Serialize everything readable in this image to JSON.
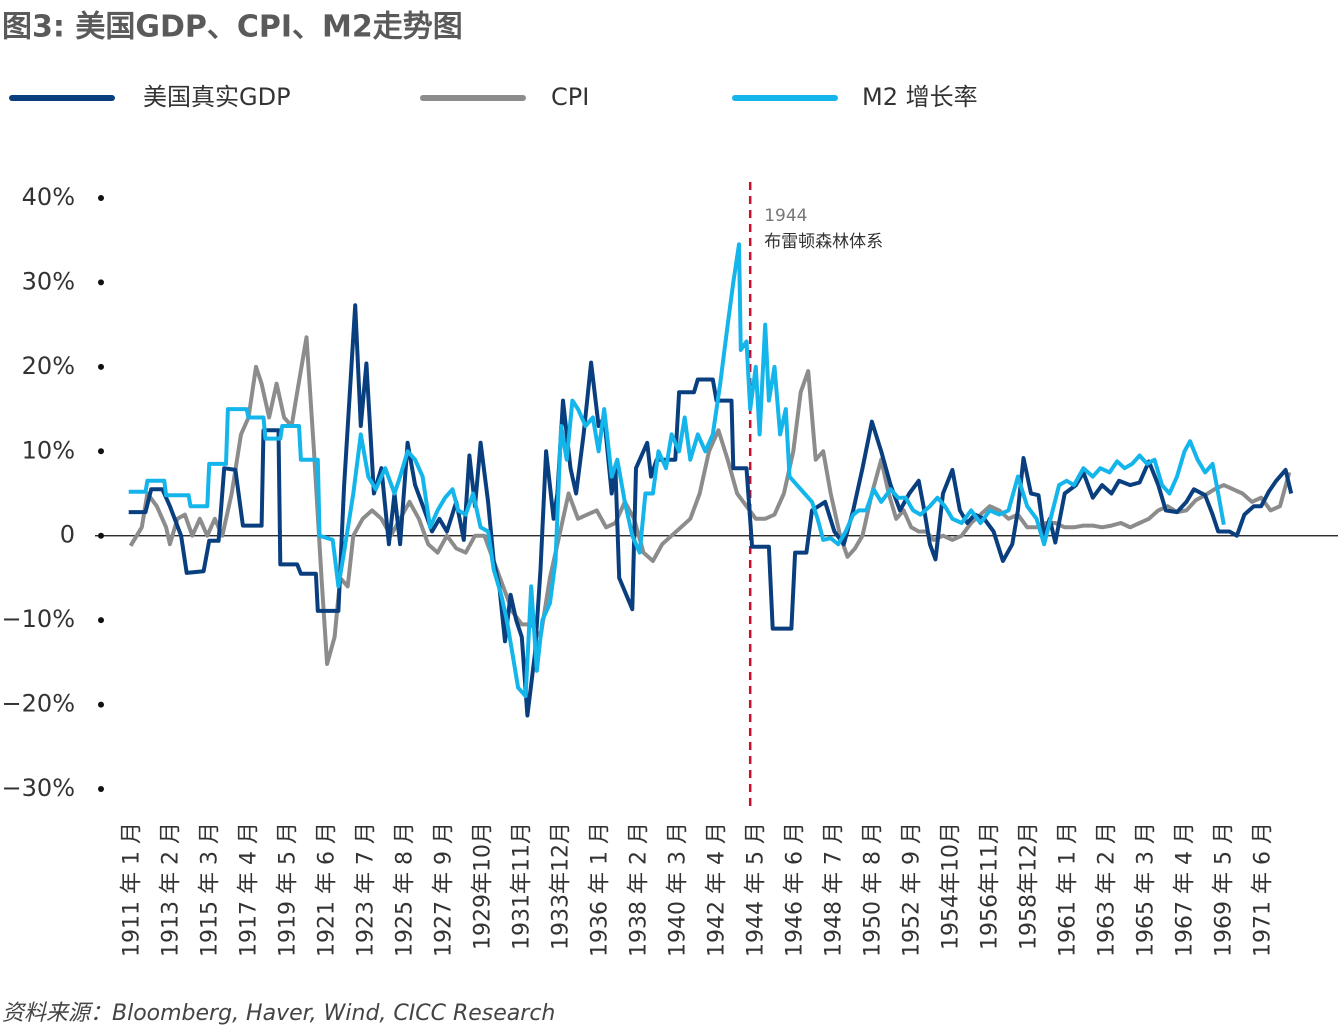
{
  "chart_data": {
    "type": "line",
    "title": "图3: 美国GDP、CPI、M2走势图",
    "source": "资料来源：Bloomberg, Haver, Wind, CICC Research",
    "xlim": [
      1909,
      1975.4
    ],
    "ylim": [
      -30,
      40
    ],
    "yticks": [
      {
        "value": 40,
        "label": "40%"
      },
      {
        "value": 30,
        "label": "30%"
      },
      {
        "value": 20,
        "label": "20%"
      },
      {
        "value": 10,
        "label": "10%"
      },
      0,
      {
        "value": -10,
        "label": "−10%"
      },
      {
        "value": -20,
        "label": "−20%"
      },
      {
        "value": -30,
        "label": "−30%"
      }
    ],
    "xticks": [
      {
        "value": 1911,
        "label": "1911 年 1 月"
      },
      {
        "value": 1913.083,
        "label": "1913 年 2 月"
      },
      {
        "value": 1915.167,
        "label": "1915 年 3 月"
      },
      {
        "value": 1917.25,
        "label": "1917 年 4 月"
      },
      {
        "value": 1919.333,
        "label": "1919 年 5 月"
      },
      {
        "value": 1921.417,
        "label": "1921 年 6 月"
      },
      {
        "value": 1923.5,
        "label": "1923 年 7 月"
      },
      {
        "value": 1925.583,
        "label": "1925 年 8 月"
      },
      {
        "value": 1927.667,
        "label": "1927 年 9 月"
      },
      {
        "value": 1929.75,
        "label": "1929年10月"
      },
      {
        "value": 1931.833,
        "label": "1931年11月"
      },
      {
        "value": 1933.917,
        "label": "1933年12月"
      },
      {
        "value": 1936,
        "label": "1936 年 1 月"
      },
      {
        "value": 1938.083,
        "label": "1938 年 2 月"
      },
      {
        "value": 1940.167,
        "label": "1940 年 3 月"
      },
      {
        "value": 1942.25,
        "label": "1942 年 4 月"
      },
      {
        "value": 1944.333,
        "label": "1944 年 5 月"
      },
      {
        "value": 1946.417,
        "label": "1946 年 6 月"
      },
      {
        "value": 1948.5,
        "label": "1948 年 7 月"
      },
      {
        "value": 1950.583,
        "label": "1950 年 8 月"
      },
      {
        "value": 1952.667,
        "label": "1952 年 9 月"
      },
      {
        "value": 1954.75,
        "label": "1954年10月"
      },
      {
        "value": 1956.833,
        "label": "1956年11月"
      },
      {
        "value": 1958.917,
        "label": "1958年12月"
      },
      {
        "value": 1961,
        "label": "1961 年 1 月"
      },
      {
        "value": 1963.083,
        "label": "1963 年 2 月"
      },
      {
        "value": 1965.167,
        "label": "1965 年 3 月"
      },
      {
        "value": 1967.25,
        "label": "1967 年 4 月"
      },
      {
        "value": 1969.333,
        "label": "1969 年 5 月"
      },
      {
        "value": 1971.417,
        "label": "1971 年 6 月"
      }
    ],
    "annotation": {
      "x": 1944,
      "year": "1944",
      "text": "布雷顿森林体系",
      "color": "#c8102e"
    },
    "series": [
      {
        "name": "美国真实GDP",
        "color": "#0a3f7f",
        "x": [
          1910.8,
          1911.7,
          1912.0,
          1912.6,
          1913.0,
          1913.6,
          1913.9,
          1914.8,
          1915.1,
          1915.6,
          1915.9,
          1916.5,
          1916.9,
          1917.9,
          1918.0,
          1918.8,
          1918.9,
          1919.8,
          1920.0,
          1920.8,
          1920.9,
          1922.0,
          1922.3,
          1922.9,
          1923.2,
          1923.5,
          1923.9,
          1924.3,
          1924.7,
          1925.0,
          1925.3,
          1925.7,
          1926.1,
          1926.6,
          1927.0,
          1927.4,
          1927.8,
          1928.3,
          1928.7,
          1929.0,
          1929.3,
          1929.6,
          1930.0,
          1930.3,
          1930.6,
          1930.9,
          1931.2,
          1931.5,
          1931.8,
          1932.1,
          1932.5,
          1932.8,
          1933.1,
          1933.5,
          1933.7,
          1934.0,
          1934.4,
          1934.7,
          1935.1,
          1935.5,
          1935.9,
          1936.2,
          1936.6,
          1936.8,
          1937.0,
          1937.7,
          1937.9,
          1938.5,
          1938.7,
          1939.0,
          1940.0,
          1940.2,
          1941.0,
          1941.2,
          1942.0,
          1942.2,
          1943.0,
          1943.1,
          1943.8,
          1944.1,
          1945.0,
          1945.2,
          1946.2,
          1946.4,
          1947.0,
          1947.3,
          1948.0,
          1948.5,
          1949.0,
          1949.5,
          1950.0,
          1950.5,
          1951.0,
          1951.5,
          1952.0,
          1952.5,
          1953.0,
          1953.3,
          1953.6,
          1953.9,
          1954.3,
          1954.8,
          1955.2,
          1955.6,
          1956.0,
          1956.5,
          1957.0,
          1957.5,
          1958.0,
          1958.3,
          1958.6,
          1959.0,
          1959.4,
          1959.7,
          1960.0,
          1960.3,
          1960.8,
          1961.4,
          1961.8,
          1962.3,
          1962.8,
          1963.3,
          1963.7,
          1964.3,
          1964.8,
          1965.3,
          1965.8,
          1966.2,
          1966.8,
          1967.3,
          1967.7,
          1968.3,
          1968.7,
          1969.0,
          1969.6,
          1970.0,
          1970.4,
          1970.9,
          1971.3,
          1971.7,
          1972.1,
          1972.6,
          1972.9
        ],
        "values": [
          2.8,
          2.8,
          5.5,
          5.5,
          3.5,
          0,
          -4.4,
          -4.2,
          -0.6,
          -0.6,
          8,
          7.8,
          1.2,
          1.2,
          12.5,
          12.5,
          -3.4,
          -3.4,
          -4.5,
          -4.5,
          -8.9,
          -8.9,
          5.7,
          27.3,
          13,
          20.4,
          5,
          8,
          -1,
          5,
          -1,
          11,
          6,
          3,
          0.5,
          2,
          0.5,
          4,
          -0.5,
          9.5,
          3.5,
          11,
          4,
          -3,
          -6,
          -12.5,
          -7,
          -10,
          -12,
          -21.3,
          -14,
          -4,
          10,
          2,
          5,
          16,
          8,
          5,
          12,
          20.5,
          13,
          14,
          5,
          8,
          -5,
          -8.7,
          8,
          11,
          7,
          9,
          9,
          17,
          17,
          18.5,
          18.5,
          16,
          16,
          8,
          8,
          -1.3,
          -1.3,
          -11,
          -11,
          -2,
          -2,
          3,
          4,
          0.5,
          -1,
          3,
          8,
          13.5,
          10,
          6,
          3,
          5,
          6.5,
          3,
          -1,
          -2.8,
          5,
          7.8,
          3,
          1.5,
          2.5,
          2,
          0.5,
          -3,
          -1,
          3,
          9.2,
          5,
          4.8,
          0,
          2,
          -0.8,
          5,
          6,
          7.5,
          4.5,
          6,
          5,
          6.5,
          6,
          6.3,
          8.8,
          6,
          3,
          2.8,
          4,
          5.5,
          4.8,
          2.5,
          0.5,
          0.5,
          0,
          2.5,
          3.5,
          3.5,
          5.2,
          6.5,
          7.8,
          5
        ]
      },
      {
        "name": "CPI",
        "color": "#8c8c8c",
        "x": [
          1910.9,
          1911.5,
          1911.8,
          1912.3,
          1912.8,
          1913.0,
          1913.4,
          1913.8,
          1914.2,
          1914.6,
          1915.0,
          1915.4,
          1915.8,
          1916.3,
          1916.8,
          1917.2,
          1917.6,
          1917.9,
          1918.3,
          1918.7,
          1919.1,
          1919.5,
          1919.8,
          1920.3,
          1920.7,
          1921.1,
          1921.4,
          1921.8,
          1922.1,
          1922.5,
          1922.8,
          1923.3,
          1923.8,
          1924.3,
          1924.8,
          1925.3,
          1925.8,
          1926.3,
          1926.8,
          1927.3,
          1927.8,
          1928.3,
          1928.8,
          1929.3,
          1929.8,
          1930.3,
          1930.8,
          1931.3,
          1931.8,
          1932.3,
          1932.8,
          1933.3,
          1933.8,
          1934.3,
          1934.8,
          1935.3,
          1935.8,
          1936.3,
          1936.8,
          1937.3,
          1937.8,
          1938.3,
          1938.8,
          1939.3,
          1939.8,
          1940.3,
          1940.8,
          1941.3,
          1941.8,
          1942.3,
          1942.8,
          1943.3,
          1943.8,
          1944.3,
          1944.8,
          1945.3,
          1945.8,
          1946.3,
          1946.7,
          1947.1,
          1947.5,
          1947.9,
          1948.3,
          1948.8,
          1949.2,
          1949.6,
          1950.0,
          1950.5,
          1951.0,
          1951.4,
          1951.8,
          1952.2,
          1952.6,
          1953.0,
          1953.4,
          1953.8,
          1954.3,
          1954.8,
          1955.3,
          1955.8,
          1956.3,
          1956.8,
          1957.3,
          1957.8,
          1958.3,
          1958.8,
          1959.3,
          1959.8,
          1960.3,
          1960.8,
          1961.3,
          1961.8,
          1962.3,
          1962.8,
          1963.3,
          1963.8,
          1964.3,
          1964.8,
          1965.3,
          1965.8,
          1966.3,
          1966.8,
          1967.3,
          1967.8,
          1968.3,
          1968.8,
          1969.3,
          1969.8,
          1970.3,
          1970.8,
          1971.3,
          1971.8,
          1972.3,
          1972.8
        ],
        "values": [
          -1.2,
          1,
          5,
          3.5,
          1,
          -1,
          2,
          2.5,
          0,
          2,
          0,
          2,
          0,
          5,
          12,
          14,
          20,
          18,
          14,
          18,
          14,
          13,
          17,
          23.5,
          10,
          -5,
          -15.2,
          -12,
          -5,
          -6,
          0,
          2,
          3,
          2,
          0,
          2,
          4,
          2,
          -1,
          -2,
          0,
          -1.5,
          -2,
          0,
          0,
          -3,
          -6,
          -9,
          -10.5,
          -10.5,
          -12,
          -5,
          0,
          5,
          2,
          2.5,
          3,
          1,
          1.5,
          4,
          2,
          -2,
          -3,
          -1,
          0,
          1,
          2,
          5,
          10,
          12.5,
          9,
          5,
          3.5,
          2,
          2,
          2.5,
          5,
          10,
          17,
          19.5,
          9,
          10,
          5,
          0,
          -2.5,
          -1.5,
          0,
          5,
          9,
          5,
          2,
          3,
          1,
          0.5,
          0.5,
          -0.5,
          0,
          -0.5,
          0,
          1.5,
          2.5,
          3.5,
          3,
          2,
          2.5,
          1,
          1,
          1.5,
          1.5,
          1,
          1,
          1.2,
          1.2,
          1,
          1.2,
          1.5,
          1,
          1.5,
          2,
          3,
          3.5,
          2.8,
          3,
          4.2,
          4.8,
          5.5,
          6,
          5.5,
          5,
          4,
          4.5,
          3,
          3.5,
          7.5
        ]
      },
      {
        "name": "M2 增长率",
        "color": "#13b5ea",
        "x": [
          1910.8,
          1911.7,
          1911.8,
          1912.7,
          1912.8,
          1914.0,
          1914.1,
          1915.0,
          1915.1,
          1916.0,
          1916.1,
          1917.1,
          1917.2,
          1918.0,
          1918.1,
          1918.9,
          1919.0,
          1919.9,
          1920.0,
          1920.9,
          1921.0,
          1921.7,
          1922.0,
          1922.3,
          1922.8,
          1923.2,
          1923.6,
          1924.0,
          1924.5,
          1925.0,
          1925.3,
          1925.7,
          1926.1,
          1926.5,
          1926.9,
          1927.3,
          1927.7,
          1928.1,
          1928.4,
          1928.8,
          1929.2,
          1929.6,
          1930.0,
          1930.3,
          1930.7,
          1931.0,
          1931.3,
          1931.6,
          1932.0,
          1932.3,
          1932.6,
          1932.9,
          1933.3,
          1933.6,
          1933.9,
          1934.2,
          1934.5,
          1934.8,
          1935.2,
          1935.6,
          1935.9,
          1936.2,
          1936.6,
          1936.9,
          1937.3,
          1937.7,
          1938.1,
          1938.4,
          1938.8,
          1939.1,
          1939.5,
          1939.8,
          1940.2,
          1940.5,
          1940.8,
          1941.2,
          1941.6,
          1942.0,
          1942.4,
          1942.8,
          1943.1,
          1943.4,
          1943.5,
          1943.8,
          1944.0,
          1944.3,
          1944.5,
          1944.8,
          1945.0,
          1945.3,
          1945.6,
          1945.9,
          1946.1,
          1946.5,
          1946.9,
          1947.3,
          1947.6,
          1947.9,
          1948.3,
          1948.7,
          1949.1,
          1949.5,
          1949.8,
          1950.2,
          1950.6,
          1951.0,
          1951.5,
          1951.9,
          1952.3,
          1952.7,
          1953.1,
          1953.6,
          1954.0,
          1954.4,
          1954.8,
          1955.3,
          1955.8,
          1956.3,
          1956.8,
          1957.3,
          1957.8,
          1958.3,
          1958.8,
          1959.3,
          1959.7,
          1960.1,
          1960.5,
          1960.9,
          1961.3,
          1961.8,
          1962.3,
          1962.7,
          1963.2,
          1963.6,
          1964.0,
          1964.4,
          1964.8,
          1965.2,
          1965.6,
          1966.0,
          1966.4,
          1966.8,
          1967.2,
          1967.5,
          1967.9,
          1968.3,
          1968.7,
          1969.0,
          1969.3
        ],
        "values": [
          5.2,
          5.2,
          6.5,
          6.5,
          4.8,
          4.8,
          3.5,
          3.5,
          8.5,
          8.5,
          15,
          15,
          14,
          14,
          11.5,
          11.5,
          13,
          13,
          9,
          9,
          0,
          -0.5,
          -6,
          -2,
          5,
          12,
          7,
          5.5,
          8,
          5,
          7,
          10,
          9,
          7,
          1,
          3,
          4.5,
          5.5,
          3,
          2.5,
          5,
          1,
          0.5,
          -4,
          -7,
          -10,
          -14,
          -18,
          -19,
          -6,
          -16,
          -10,
          -8,
          -3,
          13,
          9,
          16,
          15,
          13,
          14,
          10,
          15,
          7,
          9,
          4,
          0,
          -2,
          5,
          5,
          10,
          8,
          12,
          10,
          14,
          9,
          12,
          10,
          12,
          18,
          25,
          30,
          34.5,
          22,
          23,
          15,
          20,
          12,
          25,
          16,
          20,
          12,
          15,
          7,
          6,
          5,
          4,
          2,
          -0.5,
          -0.3,
          -1,
          0.5,
          2.5,
          3,
          3,
          5.5,
          4,
          5.5,
          4.5,
          4.5,
          3,
          2.5,
          3.5,
          4.5,
          3.5,
          2,
          1.5,
          3,
          1.5,
          3,
          2.5,
          3,
          7,
          3.5,
          2,
          -1,
          2.5,
          6,
          6.5,
          6,
          8,
          7,
          8,
          7.5,
          8.8,
          8,
          8.5,
          9.5,
          8.5,
          9,
          6,
          5,
          7,
          10,
          11.2,
          9,
          7.5,
          8.5,
          5,
          1.3
        ]
      }
    ]
  }
}
